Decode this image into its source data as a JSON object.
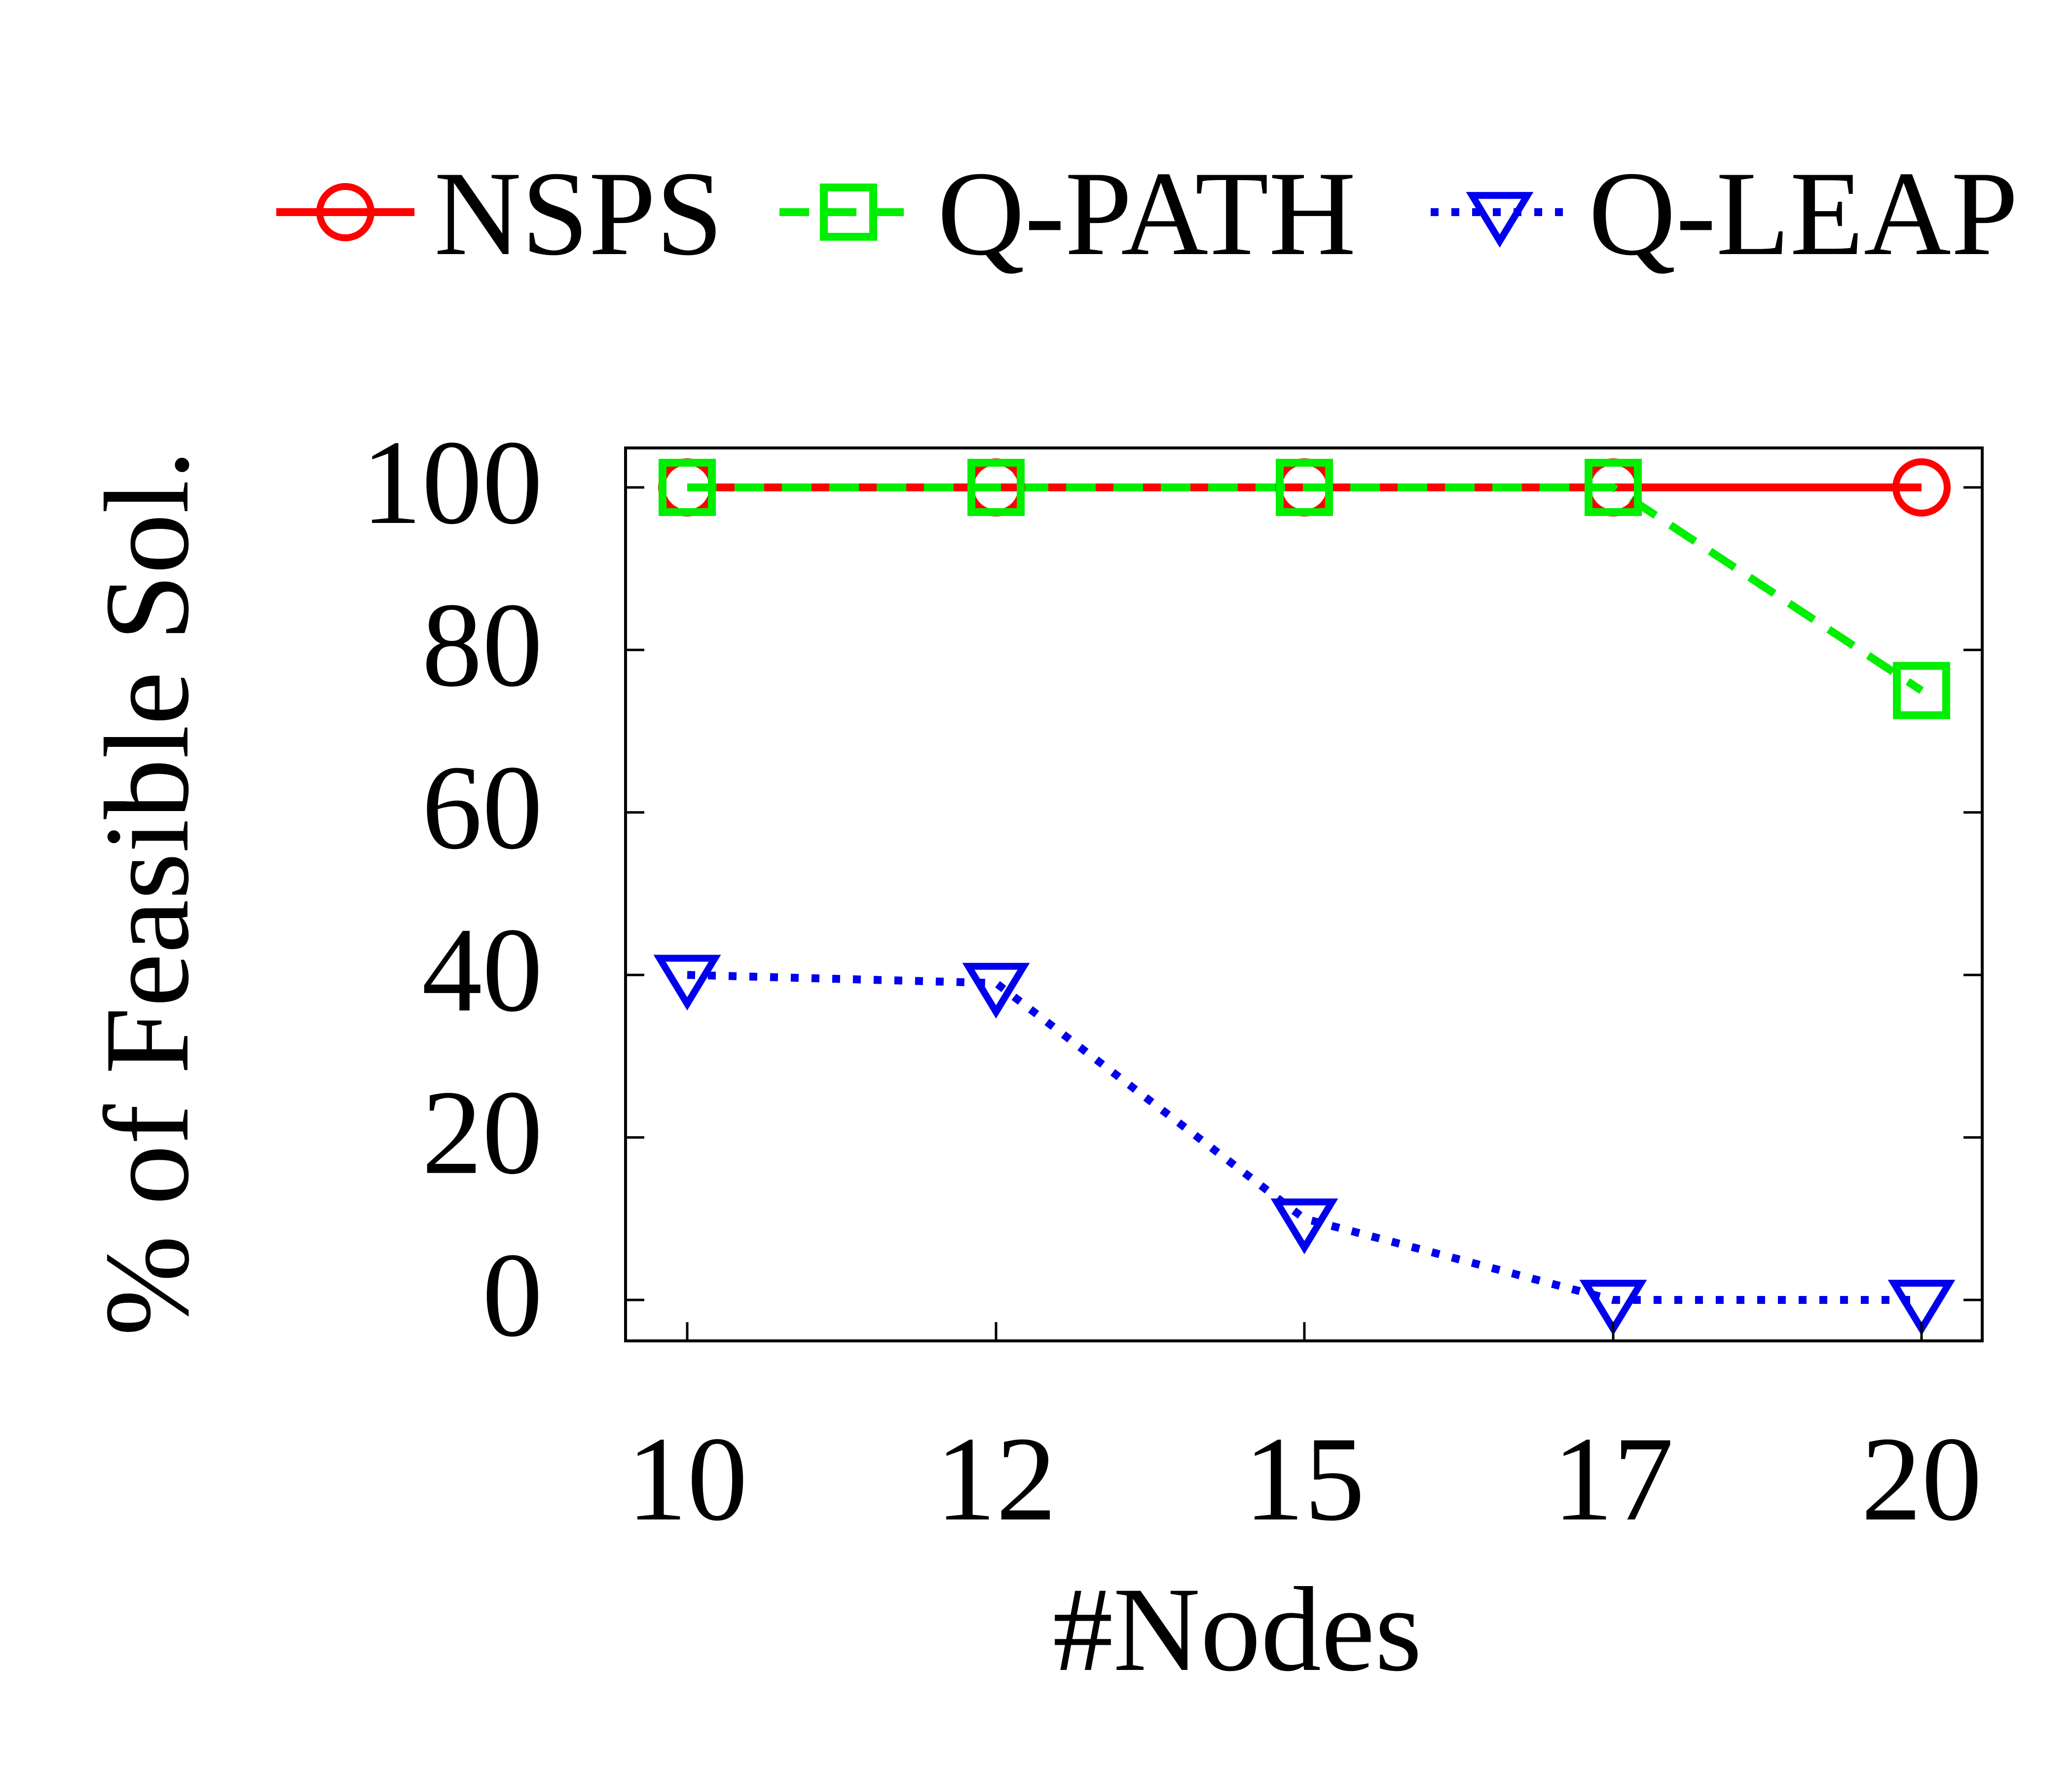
{
  "chart_data": {
    "type": "line",
    "title": "",
    "xlabel": "#Nodes",
    "ylabel": "% of Feasible Sol.",
    "categories": [
      "10",
      "12",
      "15",
      "17",
      "20"
    ],
    "ylim": [
      -5,
      105
    ],
    "yticks": [
      0,
      20,
      40,
      60,
      80,
      100
    ],
    "grid": false,
    "legend_position": "top",
    "series": [
      {
        "name": "NSPS",
        "values": [
          100,
          100,
          100,
          100,
          100
        ],
        "color": "#ff0000",
        "marker": "circle",
        "line_style": "solid"
      },
      {
        "name": "Q-PATH",
        "values": [
          100,
          100,
          100,
          100,
          75
        ],
        "color": "#00ee00",
        "marker": "square",
        "line_style": "dashed"
      },
      {
        "name": "Q-LEAP",
        "values": [
          40,
          39,
          10,
          0,
          0
        ],
        "color": "#0000ee",
        "marker": "triangle-down",
        "line_style": "dotted"
      }
    ]
  }
}
